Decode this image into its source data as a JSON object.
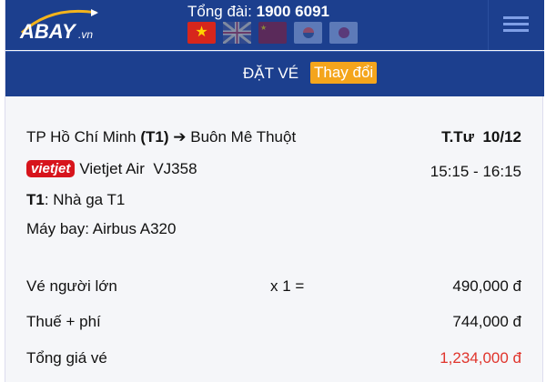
{
  "header": {
    "logo": "ABAY.vn",
    "hotline_label": "Tổng đài:",
    "hotline_number": "1900 6091",
    "flags": [
      {
        "name": "vietnam",
        "active": true
      },
      {
        "name": "uk",
        "active": false
      },
      {
        "name": "china",
        "active": false
      },
      {
        "name": "korea",
        "active": false
      },
      {
        "name": "japan",
        "active": false
      }
    ]
  },
  "subheader": {
    "title": "ĐẶT VÉ",
    "change_label": "Thay đổi"
  },
  "flight": {
    "from": "TP Hồ Chí Minh",
    "from_terminal": "(T1)",
    "to": "Buôn Mê Thuột",
    "day": "T.Tư",
    "date": "10/12",
    "airline_logo": "vietjet",
    "airline": "Vietjet Air",
    "flight_no": "VJ358",
    "time": "15:15 - 16:15",
    "terminal_code": "T1",
    "terminal_name": ": Nhà ga T1",
    "aircraft": "Máy bay: Airbus A320"
  },
  "price": {
    "adult_label": "Vé người lớn",
    "adult_qty": "x 1 =",
    "adult_price": "490,000 đ",
    "tax_label": "Thuế + phí",
    "tax_price": "744,000 đ",
    "total_label": "Tổng giá vé",
    "total_price": "1,234,000 đ"
  },
  "colors": {
    "header": "#1c3f8e",
    "accent": "#f4a51c",
    "total": "#e0342c"
  }
}
